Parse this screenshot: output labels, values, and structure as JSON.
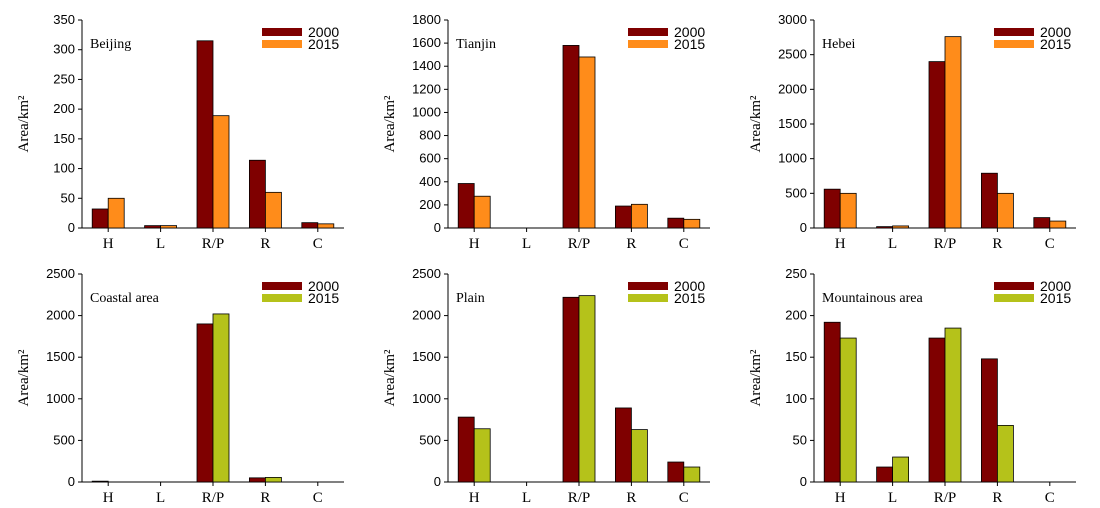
{
  "chart_data": [
    {
      "type": "bar",
      "title": "Beijing",
      "categories": [
        "H",
        "L",
        "R/P",
        "R",
        "C"
      ],
      "ylabel": "Area/km²",
      "ylim": [
        0,
        350
      ],
      "yticks": [
        0,
        50,
        100,
        150,
        200,
        250,
        300,
        350
      ],
      "legend_position": "top-right",
      "series": [
        {
          "name": "2000",
          "color": "#7f0000",
          "values": [
            32,
            4,
            315,
            114,
            9
          ]
        },
        {
          "name": "2015",
          "color": "#ff8c1a",
          "values": [
            50,
            4,
            189,
            60,
            7
          ]
        }
      ]
    },
    {
      "type": "bar",
      "title": "Tianjin",
      "categories": [
        "H",
        "L",
        "R/P",
        "R",
        "C"
      ],
      "ylabel": "Area/km²",
      "ylim": [
        0,
        1800
      ],
      "yticks": [
        0,
        200,
        400,
        600,
        800,
        1000,
        1200,
        1400,
        1600,
        1800
      ],
      "legend_position": "top-right",
      "series": [
        {
          "name": "2000",
          "color": "#7f0000",
          "values": [
            385,
            0,
            1580,
            190,
            85
          ]
        },
        {
          "name": "2015",
          "color": "#ff8c1a",
          "values": [
            275,
            0,
            1480,
            205,
            75
          ]
        }
      ]
    },
    {
      "type": "bar",
      "title": "Hebei",
      "categories": [
        "H",
        "L",
        "R/P",
        "R",
        "C"
      ],
      "ylabel": "Area/km²",
      "ylim": [
        0,
        3000
      ],
      "yticks": [
        0,
        500,
        1000,
        1500,
        2000,
        2500,
        3000
      ],
      "legend_position": "top-right",
      "series": [
        {
          "name": "2000",
          "color": "#7f0000",
          "values": [
            560,
            20,
            2400,
            790,
            150
          ]
        },
        {
          "name": "2015",
          "color": "#ff8c1a",
          "values": [
            500,
            30,
            2760,
            500,
            100
          ]
        }
      ]
    },
    {
      "type": "bar",
      "title": "Coastal area",
      "categories": [
        "H",
        "L",
        "R/P",
        "R",
        "C"
      ],
      "ylabel": "Area/km²",
      "ylim": [
        0,
        2500
      ],
      "yticks": [
        0,
        500,
        1000,
        1500,
        2000,
        2500
      ],
      "legend_position": "top-right",
      "series": [
        {
          "name": "2000",
          "color": "#7f0000",
          "values": [
            10,
            0,
            1900,
            50,
            0
          ]
        },
        {
          "name": "2015",
          "color": "#b5c21a",
          "values": [
            0,
            0,
            2020,
            55,
            0
          ]
        }
      ]
    },
    {
      "type": "bar",
      "title": "Plain",
      "categories": [
        "H",
        "L",
        "R/P",
        "R",
        "C"
      ],
      "ylabel": "Area/km²",
      "ylim": [
        0,
        2500
      ],
      "yticks": [
        0,
        500,
        1000,
        1500,
        2000,
        2500
      ],
      "legend_position": "top-right",
      "series": [
        {
          "name": "2000",
          "color": "#7f0000",
          "values": [
            780,
            0,
            2220,
            890,
            240
          ]
        },
        {
          "name": "2015",
          "color": "#b5c21a",
          "values": [
            640,
            0,
            2240,
            630,
            180
          ]
        }
      ]
    },
    {
      "type": "bar",
      "title": "Mountainous area",
      "categories": [
        "H",
        "L",
        "R/P",
        "R",
        "C"
      ],
      "ylabel": "Area/km²",
      "ylim": [
        0,
        250
      ],
      "yticks": [
        0,
        50,
        100,
        150,
        200,
        250
      ],
      "legend_position": "top-right",
      "series": [
        {
          "name": "2000",
          "color": "#7f0000",
          "values": [
            192,
            18,
            173,
            148,
            0
          ]
        },
        {
          "name": "2015",
          "color": "#b5c21a",
          "values": [
            173,
            30,
            185,
            68,
            0
          ]
        }
      ]
    }
  ]
}
